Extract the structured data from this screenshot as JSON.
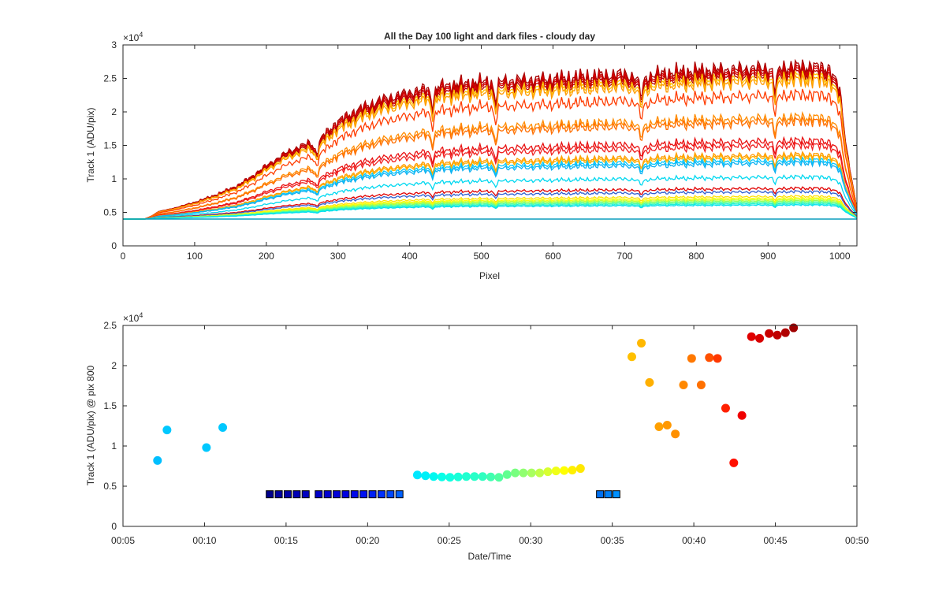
{
  "chart_data": [
    {
      "type": "line",
      "title": "All the Day 100 light and dark files - cloudy day",
      "xlabel": "Pixel",
      "ylabel": "Track 1 (ADU/pix)",
      "xlim": [
        0,
        1024
      ],
      "ylim": [
        0,
        30000
      ],
      "xticks": [
        0,
        100,
        200,
        300,
        400,
        500,
        600,
        700,
        800,
        900,
        1000
      ],
      "yticks": [
        0,
        5000,
        10000,
        15000,
        20000,
        25000,
        30000
      ],
      "ytick_labels": [
        "0",
        "0.5",
        "1",
        "1.5",
        "2",
        "2.5",
        "3"
      ],
      "exponent_label": "×10",
      "exponent_power": "4",
      "grid": false,
      "profile_x": [
        0,
        30,
        40,
        50,
        70,
        100,
        130,
        160,
        180,
        200,
        230,
        260,
        270,
        280,
        300,
        330,
        360,
        400,
        430,
        460,
        500,
        550,
        600,
        650,
        700,
        720,
        750,
        800,
        850,
        900,
        950,
        985,
        1000,
        1010,
        1024
      ],
      "profile_shape": [
        0,
        0,
        0.02,
        0.05,
        0.07,
        0.11,
        0.16,
        0.22,
        0.28,
        0.35,
        0.44,
        0.5,
        0.48,
        0.55,
        0.64,
        0.72,
        0.78,
        0.83,
        0.86,
        0.88,
        0.9,
        0.91,
        0.92,
        0.935,
        0.95,
        0.92,
        0.955,
        0.97,
        0.98,
        0.99,
        1.0,
        0.99,
        0.85,
        0.45,
        0.06
      ],
      "dips": [
        {
          "x": 270,
          "depth": 0.1
        },
        {
          "x": 432,
          "depth": 0.12
        },
        {
          "x": 520,
          "depth": 0.13
        },
        {
          "x": 723,
          "depth": 0.12
        },
        {
          "x": 910,
          "depth": 0.14
        }
      ],
      "dark_level": 4000,
      "series": [
        {
          "peak": 26800,
          "color": "#a50000"
        },
        {
          "peak": 26400,
          "color": "#c00000"
        },
        {
          "peak": 26100,
          "color": "#d80000"
        },
        {
          "peak": 25700,
          "color": "#b80000"
        },
        {
          "peak": 25200,
          "color": "#ffc000"
        },
        {
          "peak": 24700,
          "color": "#ff9a00"
        },
        {
          "peak": 22600,
          "color": "#ff3c00"
        },
        {
          "peak": 19200,
          "color": "#ff8c00"
        },
        {
          "peak": 18600,
          "color": "#ff6e00"
        },
        {
          "peak": 15700,
          "color": "#e81010"
        },
        {
          "peak": 15000,
          "color": "#f02020"
        },
        {
          "peak": 13600,
          "color": "#ff9a00"
        },
        {
          "peak": 13300,
          "color": "#ffb000"
        },
        {
          "peak": 12800,
          "color": "#00c8ff"
        },
        {
          "peak": 12400,
          "color": "#10b0f0"
        },
        {
          "peak": 10300,
          "color": "#00d8f0"
        },
        {
          "peak": 8600,
          "color": "#e00000"
        },
        {
          "peak": 8100,
          "color": "#3060d0"
        },
        {
          "peak": 7400,
          "color": "#ffe000"
        },
        {
          "peak": 7100,
          "color": "#ffff00"
        },
        {
          "peak": 6900,
          "color": "#c8ff30"
        },
        {
          "peak": 6700,
          "color": "#90ff60"
        },
        {
          "peak": 6500,
          "color": "#50ffa0"
        },
        {
          "peak": 6300,
          "color": "#20f0d0"
        },
        {
          "peak": 6100,
          "color": "#00e0f0"
        },
        {
          "peak": 4000,
          "color": "#0070ff"
        },
        {
          "peak": 4000,
          "color": "#00a0b0"
        }
      ]
    },
    {
      "type": "scatter",
      "xlabel": "Date/Time",
      "ylabel": "Track 1 (ADU/pix) @ pix 800",
      "xlim": [
        "00:05",
        "00:50"
      ],
      "ylim": [
        0,
        25000
      ],
      "xticks": [
        "00:05",
        "00:10",
        "00:15",
        "00:20",
        "00:25",
        "00:30",
        "00:35",
        "00:40",
        "00:45",
        "00:50"
      ],
      "yticks": [
        0,
        5000,
        10000,
        15000,
        20000,
        25000
      ],
      "ytick_labels": [
        "0",
        "0.5",
        "1",
        "1.5",
        "2",
        "2.5"
      ],
      "exponent_label": "×10",
      "exponent_power": "4",
      "grid": false,
      "points": [
        {
          "t": "00:07:07",
          "y": 8200,
          "color": "#00bfff",
          "marker": "circle"
        },
        {
          "t": "00:07:42",
          "y": 12000,
          "color": "#00c8ff",
          "marker": "circle"
        },
        {
          "t": "00:10:07",
          "y": 9800,
          "color": "#00c8ff",
          "marker": "circle"
        },
        {
          "t": "00:11:07",
          "y": 12300,
          "color": "#00c8ff",
          "marker": "circle"
        },
        {
          "t": "00:14:00",
          "y": 4000,
          "color": "#00008b",
          "marker": "square"
        },
        {
          "t": "00:14:33",
          "y": 4000,
          "color": "#00009f",
          "marker": "square"
        },
        {
          "t": "00:15:06",
          "y": 4000,
          "color": "#0000a8",
          "marker": "square"
        },
        {
          "t": "00:15:39",
          "y": 4000,
          "color": "#0000b5",
          "marker": "square"
        },
        {
          "t": "00:16:12",
          "y": 4000,
          "color": "#0000c0",
          "marker": "square"
        },
        {
          "t": "00:17:00",
          "y": 4000,
          "color": "#0000c8",
          "marker": "square"
        },
        {
          "t": "00:17:33",
          "y": 4000,
          "color": "#0000d0",
          "marker": "square"
        },
        {
          "t": "00:18:06",
          "y": 4000,
          "color": "#0000d8",
          "marker": "square"
        },
        {
          "t": "00:18:39",
          "y": 4000,
          "color": "#0000e0",
          "marker": "square"
        },
        {
          "t": "00:19:12",
          "y": 4000,
          "color": "#0008e8",
          "marker": "square"
        },
        {
          "t": "00:19:45",
          "y": 4000,
          "color": "#0010f0",
          "marker": "square"
        },
        {
          "t": "00:20:18",
          "y": 4000,
          "color": "#0020f5",
          "marker": "square"
        },
        {
          "t": "00:20:51",
          "y": 4000,
          "color": "#0030ff",
          "marker": "square"
        },
        {
          "t": "00:21:24",
          "y": 4000,
          "color": "#0048ff",
          "marker": "square"
        },
        {
          "t": "00:21:57",
          "y": 4000,
          "color": "#0060ff",
          "marker": "square"
        },
        {
          "t": "00:23:03",
          "y": 6400,
          "color": "#00e8ff",
          "marker": "circle"
        },
        {
          "t": "00:23:33",
          "y": 6300,
          "color": "#00f0f8",
          "marker": "circle"
        },
        {
          "t": "00:24:03",
          "y": 6200,
          "color": "#00f8f0",
          "marker": "circle"
        },
        {
          "t": "00:24:33",
          "y": 6150,
          "color": "#08ffe8",
          "marker": "circle"
        },
        {
          "t": "00:25:03",
          "y": 6100,
          "color": "#10ffe0",
          "marker": "circle"
        },
        {
          "t": "00:25:33",
          "y": 6150,
          "color": "#18ffd8",
          "marker": "circle"
        },
        {
          "t": "00:26:03",
          "y": 6200,
          "color": "#20ffd0",
          "marker": "circle"
        },
        {
          "t": "00:26:33",
          "y": 6200,
          "color": "#28ffc8",
          "marker": "circle"
        },
        {
          "t": "00:27:03",
          "y": 6200,
          "color": "#30ffc0",
          "marker": "circle"
        },
        {
          "t": "00:27:33",
          "y": 6150,
          "color": "#40ffb0",
          "marker": "circle"
        },
        {
          "t": "00:28:03",
          "y": 6100,
          "color": "#50ffa0",
          "marker": "circle"
        },
        {
          "t": "00:28:33",
          "y": 6450,
          "color": "#60ff90",
          "marker": "circle"
        },
        {
          "t": "00:29:03",
          "y": 6650,
          "color": "#78ff80",
          "marker": "circle"
        },
        {
          "t": "00:29:33",
          "y": 6650,
          "color": "#90ff70",
          "marker": "circle"
        },
        {
          "t": "00:30:03",
          "y": 6650,
          "color": "#a8ff60",
          "marker": "circle"
        },
        {
          "t": "00:30:33",
          "y": 6650,
          "color": "#c0ff48",
          "marker": "circle"
        },
        {
          "t": "00:31:03",
          "y": 6800,
          "color": "#d8ff30",
          "marker": "circle"
        },
        {
          "t": "00:31:33",
          "y": 6900,
          "color": "#f0ff18",
          "marker": "circle"
        },
        {
          "t": "00:32:03",
          "y": 6950,
          "color": "#ffff00",
          "marker": "circle"
        },
        {
          "t": "00:32:33",
          "y": 7000,
          "color": "#fff000",
          "marker": "circle"
        },
        {
          "t": "00:33:03",
          "y": 7200,
          "color": "#ffe800",
          "marker": "circle"
        },
        {
          "t": "00:34:15",
          "y": 4000,
          "color": "#0070f0",
          "marker": "square"
        },
        {
          "t": "00:34:45",
          "y": 4000,
          "color": "#0080f8",
          "marker": "square"
        },
        {
          "t": "00:35:15",
          "y": 4000,
          "color": "#0090ff",
          "marker": "square"
        },
        {
          "t": "00:36:12",
          "y": 21100,
          "color": "#ffc000",
          "marker": "circle"
        },
        {
          "t": "00:36:47",
          "y": 22800,
          "color": "#ffb800",
          "marker": "circle"
        },
        {
          "t": "00:37:17",
          "y": 17900,
          "color": "#ffb000",
          "marker": "circle"
        },
        {
          "t": "00:37:52",
          "y": 12400,
          "color": "#ffa000",
          "marker": "circle"
        },
        {
          "t": "00:38:22",
          "y": 12600,
          "color": "#ff9800",
          "marker": "circle"
        },
        {
          "t": "00:38:52",
          "y": 11500,
          "color": "#ff9000",
          "marker": "circle"
        },
        {
          "t": "00:39:22",
          "y": 17600,
          "color": "#ff8800",
          "marker": "circle"
        },
        {
          "t": "00:39:52",
          "y": 20900,
          "color": "#ff7800",
          "marker": "circle"
        },
        {
          "t": "00:40:27",
          "y": 17600,
          "color": "#ff7000",
          "marker": "circle"
        },
        {
          "t": "00:40:57",
          "y": 21000,
          "color": "#ff5000",
          "marker": "circle"
        },
        {
          "t": "00:41:27",
          "y": 20900,
          "color": "#ff3800",
          "marker": "circle"
        },
        {
          "t": "00:41:57",
          "y": 14700,
          "color": "#ff2000",
          "marker": "circle"
        },
        {
          "t": "00:42:27",
          "y": 7900,
          "color": "#ff1000",
          "marker": "circle"
        },
        {
          "t": "00:42:57",
          "y": 13800,
          "color": "#f00000",
          "marker": "circle"
        },
        {
          "t": "00:43:32",
          "y": 23600,
          "color": "#e00000",
          "marker": "circle"
        },
        {
          "t": "00:44:02",
          "y": 23400,
          "color": "#d80000",
          "marker": "circle"
        },
        {
          "t": "00:44:37",
          "y": 24000,
          "color": "#c80000",
          "marker": "circle"
        },
        {
          "t": "00:45:07",
          "y": 23800,
          "color": "#c00000",
          "marker": "circle"
        },
        {
          "t": "00:45:37",
          "y": 24100,
          "color": "#b00000",
          "marker": "circle"
        },
        {
          "t": "00:46:07",
          "y": 24700,
          "color": "#a00000",
          "marker": "circle"
        }
      ]
    }
  ]
}
